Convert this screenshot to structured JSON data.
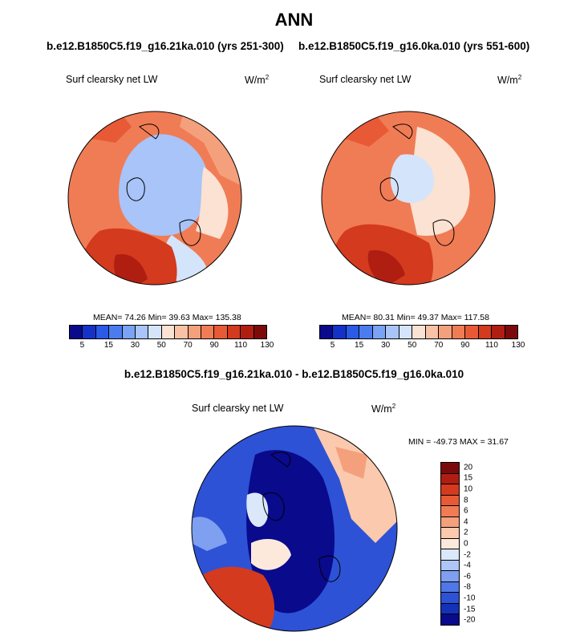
{
  "header": {
    "title": "ANN",
    "left_case": "b.e12.B1850C5.f19_g16.21ka.010 (yrs 251-300)",
    "right_case": "b.e12.B1850C5.f19_g16.0ka.010 (yrs 551-600)",
    "diff_title": "b.e12.B1850C5.f19_g16.21ka.010 - b.e12.B1850C5.f19_g16.0ka.010"
  },
  "panel_left": {
    "variable": "Surf clearsky net LW",
    "units": "W/m",
    "units_exp": "2",
    "stats": "MEAN=  74.26  Min=  39.63  Max= 135.38"
  },
  "panel_right": {
    "variable": "Surf clearsky net LW",
    "units": "W/m",
    "units_exp": "2",
    "stats": "MEAN=  80.31  Min=  49.37  Max= 117.58"
  },
  "panel_diff": {
    "variable": "Surf clearsky net LW",
    "units": "W/m",
    "units_exp": "2",
    "stats": "MIN = -49.73 MAX =  31.67"
  },
  "abs_colorbar": {
    "colors": [
      "#0a0a8c",
      "#1432c8",
      "#2a5ae6",
      "#4a7cf0",
      "#7aa2f5",
      "#a8c4f8",
      "#d4e4fb",
      "#fbe2d2",
      "#f9c2a6",
      "#f5a07c",
      "#f07c55",
      "#e85a35",
      "#d43a1e",
      "#b01e12",
      "#7d0a0a"
    ],
    "tick_labels": [
      "5",
      "15",
      "30",
      "50",
      "70",
      "90",
      "110",
      "130"
    ]
  },
  "diff_colorbar": {
    "colors": [
      "#7d0a0a",
      "#b01e12",
      "#d43a1e",
      "#e85a35",
      "#f07c55",
      "#f5a07c",
      "#fbc9ae",
      "#fde9dc",
      "#dbe8fa",
      "#aec6f6",
      "#7f9ff0",
      "#4f78e6",
      "#2d52d6",
      "#1432b8",
      "#0a0a8c"
    ],
    "tick_labels": [
      "20",
      "15",
      "10",
      "8",
      "6",
      "4",
      "2",
      "0",
      "-2",
      "-4",
      "-6",
      "-8",
      "-10",
      "-15",
      "-20"
    ]
  },
  "maps": {
    "left": {
      "ocean": "#f07c55",
      "regions": [
        {
          "name": "arctic-ice-sheet",
          "color": "#a8c4f8"
        },
        {
          "name": "ice-margin",
          "color": "#d4e4fb"
        },
        {
          "name": "north-atlantic",
          "color": "#d43a1e"
        },
        {
          "name": "eurasia",
          "color": "#fbe2d2"
        },
        {
          "name": "pacific",
          "color": "#e85a35"
        }
      ]
    },
    "right": {
      "ocean": "#f07c55",
      "regions": [
        {
          "name": "arctic-ocean",
          "color": "#d4e4fb"
        },
        {
          "name": "land",
          "color": "#fbe2d2"
        },
        {
          "name": "north-atlantic",
          "color": "#d43a1e"
        },
        {
          "name": "pacific",
          "color": "#e85a35"
        }
      ]
    },
    "diff": {
      "background": "#2d52d6",
      "regions": [
        {
          "name": "deep-negative",
          "color": "#0a0a8c"
        },
        {
          "name": "weak-negative",
          "color": "#7f9ff0"
        },
        {
          "name": "weak-positive",
          "color": "#fbc9ae"
        },
        {
          "name": "north-atlantic-positive",
          "color": "#d43a1e"
        }
      ]
    }
  }
}
